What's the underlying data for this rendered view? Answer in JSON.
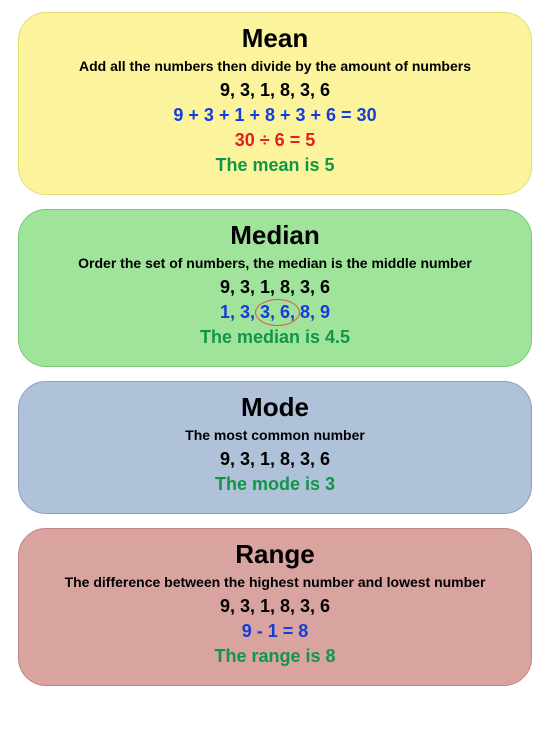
{
  "colors": {
    "black": "#000000",
    "blue": "#143cdc",
    "red": "#e11f1f",
    "green": "#109648"
  },
  "cards": [
    {
      "id": "mean",
      "bg": "#fbf49c",
      "border": "#e6dd6e",
      "title": "Mean",
      "desc": "Add all the numbers then divide by the amount of numbers",
      "lines": [
        {
          "text": "9, 3, 1, 8, 3, 6",
          "color": "black"
        },
        {
          "text": "9 + 3 + 1 + 8 + 3 + 6 = 30",
          "color": "blue"
        },
        {
          "text": "30 ÷ 6 = 5",
          "color": "red"
        },
        {
          "text": "The mean is 5",
          "color": "green"
        }
      ]
    },
    {
      "id": "median",
      "bg": "#a0e39b",
      "border": "#77c873",
      "title": "Median",
      "desc": "Order the set of numbers, the median is the middle number",
      "lines": [
        {
          "text": "9, 3, 1, 8, 3, 6",
          "color": "black"
        },
        {
          "pre": "1, 3, ",
          "mid": "3, 6,",
          "post": " 8, 9",
          "circle": true,
          "color": "blue"
        },
        {
          "text": "The median is 4.5",
          "color": "green"
        }
      ]
    },
    {
      "id": "mode",
      "bg": "#b0c1da",
      "border": "#8aa1c2",
      "title": "Mode",
      "desc": "The most common number",
      "lines": [
        {
          "text": "9, 3, 1, 8, 3, 6",
          "color": "black"
        },
        {
          "text": "The mode is 3",
          "color": "green"
        }
      ]
    },
    {
      "id": "range",
      "bg": "#d9a3a0",
      "border": "#c48380",
      "title": "Range",
      "desc": "The difference between the highest number and lowest number",
      "lines": [
        {
          "text": "9, 3, 1, 8, 3, 6",
          "color": "black"
        },
        {
          "text": "9 - 1 = 8",
          "color": "blue"
        },
        {
          "text": "The range is 8",
          "color": "green"
        }
      ]
    }
  ]
}
